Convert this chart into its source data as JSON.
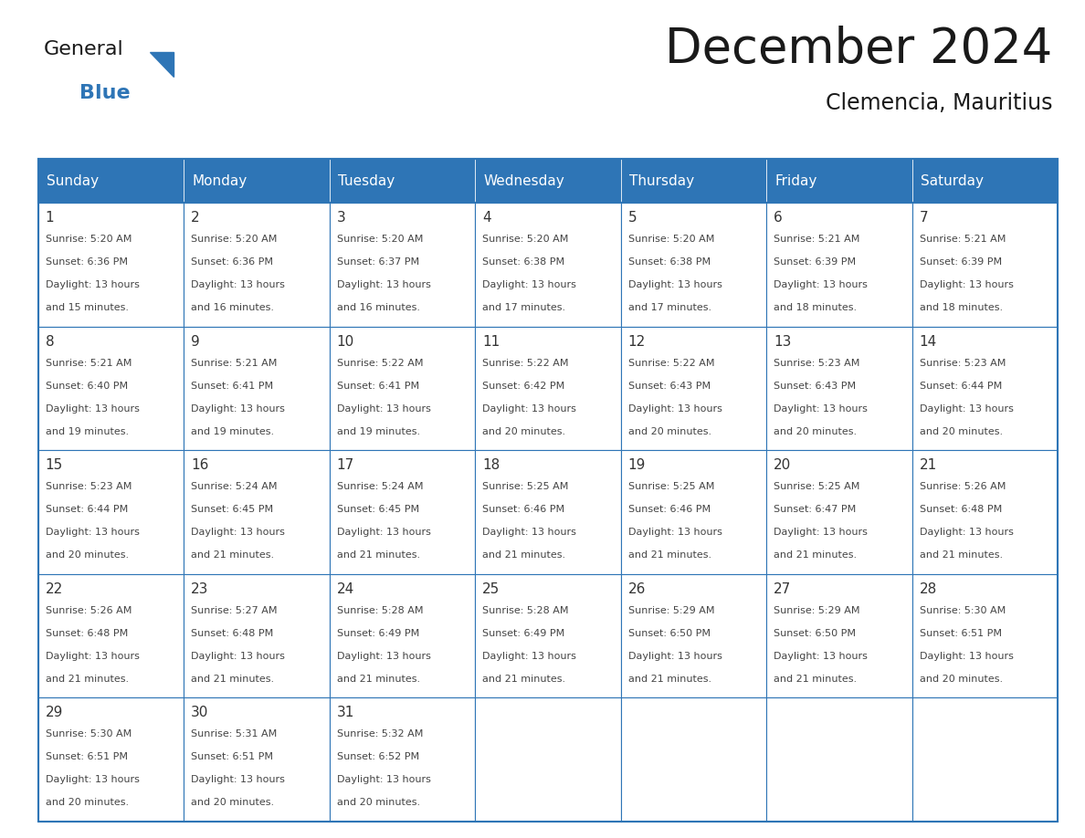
{
  "title": "December 2024",
  "subtitle": "Clemencia, Mauritius",
  "header_bg_color": "#2E75B6",
  "header_text_color": "#FFFFFF",
  "day_names": [
    "Sunday",
    "Monday",
    "Tuesday",
    "Wednesday",
    "Thursday",
    "Friday",
    "Saturday"
  ],
  "cell_border_color": "#2E75B6",
  "cell_bg_color": "#FFFFFF",
  "day_num_color": "#333333",
  "cell_text_color": "#444444",
  "title_color": "#1a1a1a",
  "subtitle_color": "#1a1a1a",
  "logo_general_color": "#1a1a1a",
  "logo_blue_color": "#2E75B6",
  "weeks": [
    [
      {
        "day": 1,
        "sunrise": "5:20 AM",
        "sunset": "6:36 PM",
        "daylight_line1": "Daylight: 13 hours",
        "daylight_line2": "and 15 minutes."
      },
      {
        "day": 2,
        "sunrise": "5:20 AM",
        "sunset": "6:36 PM",
        "daylight_line1": "Daylight: 13 hours",
        "daylight_line2": "and 16 minutes."
      },
      {
        "day": 3,
        "sunrise": "5:20 AM",
        "sunset": "6:37 PM",
        "daylight_line1": "Daylight: 13 hours",
        "daylight_line2": "and 16 minutes."
      },
      {
        "day": 4,
        "sunrise": "5:20 AM",
        "sunset": "6:38 PM",
        "daylight_line1": "Daylight: 13 hours",
        "daylight_line2": "and 17 minutes."
      },
      {
        "day": 5,
        "sunrise": "5:20 AM",
        "sunset": "6:38 PM",
        "daylight_line1": "Daylight: 13 hours",
        "daylight_line2": "and 17 minutes."
      },
      {
        "day": 6,
        "sunrise": "5:21 AM",
        "sunset": "6:39 PM",
        "daylight_line1": "Daylight: 13 hours",
        "daylight_line2": "and 18 minutes."
      },
      {
        "day": 7,
        "sunrise": "5:21 AM",
        "sunset": "6:39 PM",
        "daylight_line1": "Daylight: 13 hours",
        "daylight_line2": "and 18 minutes."
      }
    ],
    [
      {
        "day": 8,
        "sunrise": "5:21 AM",
        "sunset": "6:40 PM",
        "daylight_line1": "Daylight: 13 hours",
        "daylight_line2": "and 19 minutes."
      },
      {
        "day": 9,
        "sunrise": "5:21 AM",
        "sunset": "6:41 PM",
        "daylight_line1": "Daylight: 13 hours",
        "daylight_line2": "and 19 minutes."
      },
      {
        "day": 10,
        "sunrise": "5:22 AM",
        "sunset": "6:41 PM",
        "daylight_line1": "Daylight: 13 hours",
        "daylight_line2": "and 19 minutes."
      },
      {
        "day": 11,
        "sunrise": "5:22 AM",
        "sunset": "6:42 PM",
        "daylight_line1": "Daylight: 13 hours",
        "daylight_line2": "and 20 minutes."
      },
      {
        "day": 12,
        "sunrise": "5:22 AM",
        "sunset": "6:43 PM",
        "daylight_line1": "Daylight: 13 hours",
        "daylight_line2": "and 20 minutes."
      },
      {
        "day": 13,
        "sunrise": "5:23 AM",
        "sunset": "6:43 PM",
        "daylight_line1": "Daylight: 13 hours",
        "daylight_line2": "and 20 minutes."
      },
      {
        "day": 14,
        "sunrise": "5:23 AM",
        "sunset": "6:44 PM",
        "daylight_line1": "Daylight: 13 hours",
        "daylight_line2": "and 20 minutes."
      }
    ],
    [
      {
        "day": 15,
        "sunrise": "5:23 AM",
        "sunset": "6:44 PM",
        "daylight_line1": "Daylight: 13 hours",
        "daylight_line2": "and 20 minutes."
      },
      {
        "day": 16,
        "sunrise": "5:24 AM",
        "sunset": "6:45 PM",
        "daylight_line1": "Daylight: 13 hours",
        "daylight_line2": "and 21 minutes."
      },
      {
        "day": 17,
        "sunrise": "5:24 AM",
        "sunset": "6:45 PM",
        "daylight_line1": "Daylight: 13 hours",
        "daylight_line2": "and 21 minutes."
      },
      {
        "day": 18,
        "sunrise": "5:25 AM",
        "sunset": "6:46 PM",
        "daylight_line1": "Daylight: 13 hours",
        "daylight_line2": "and 21 minutes."
      },
      {
        "day": 19,
        "sunrise": "5:25 AM",
        "sunset": "6:46 PM",
        "daylight_line1": "Daylight: 13 hours",
        "daylight_line2": "and 21 minutes."
      },
      {
        "day": 20,
        "sunrise": "5:25 AM",
        "sunset": "6:47 PM",
        "daylight_line1": "Daylight: 13 hours",
        "daylight_line2": "and 21 minutes."
      },
      {
        "day": 21,
        "sunrise": "5:26 AM",
        "sunset": "6:48 PM",
        "daylight_line1": "Daylight: 13 hours",
        "daylight_line2": "and 21 minutes."
      }
    ],
    [
      {
        "day": 22,
        "sunrise": "5:26 AM",
        "sunset": "6:48 PM",
        "daylight_line1": "Daylight: 13 hours",
        "daylight_line2": "and 21 minutes."
      },
      {
        "day": 23,
        "sunrise": "5:27 AM",
        "sunset": "6:48 PM",
        "daylight_line1": "Daylight: 13 hours",
        "daylight_line2": "and 21 minutes."
      },
      {
        "day": 24,
        "sunrise": "5:28 AM",
        "sunset": "6:49 PM",
        "daylight_line1": "Daylight: 13 hours",
        "daylight_line2": "and 21 minutes."
      },
      {
        "day": 25,
        "sunrise": "5:28 AM",
        "sunset": "6:49 PM",
        "daylight_line1": "Daylight: 13 hours",
        "daylight_line2": "and 21 minutes."
      },
      {
        "day": 26,
        "sunrise": "5:29 AM",
        "sunset": "6:50 PM",
        "daylight_line1": "Daylight: 13 hours",
        "daylight_line2": "and 21 minutes."
      },
      {
        "day": 27,
        "sunrise": "5:29 AM",
        "sunset": "6:50 PM",
        "daylight_line1": "Daylight: 13 hours",
        "daylight_line2": "and 21 minutes."
      },
      {
        "day": 28,
        "sunrise": "5:30 AM",
        "sunset": "6:51 PM",
        "daylight_line1": "Daylight: 13 hours",
        "daylight_line2": "and 20 minutes."
      }
    ],
    [
      {
        "day": 29,
        "sunrise": "5:30 AM",
        "sunset": "6:51 PM",
        "daylight_line1": "Daylight: 13 hours",
        "daylight_line2": "and 20 minutes."
      },
      {
        "day": 30,
        "sunrise": "5:31 AM",
        "sunset": "6:51 PM",
        "daylight_line1": "Daylight: 13 hours",
        "daylight_line2": "and 20 minutes."
      },
      {
        "day": 31,
        "sunrise": "5:32 AM",
        "sunset": "6:52 PM",
        "daylight_line1": "Daylight: 13 hours",
        "daylight_line2": "and 20 minutes."
      },
      null,
      null,
      null,
      null
    ]
  ]
}
